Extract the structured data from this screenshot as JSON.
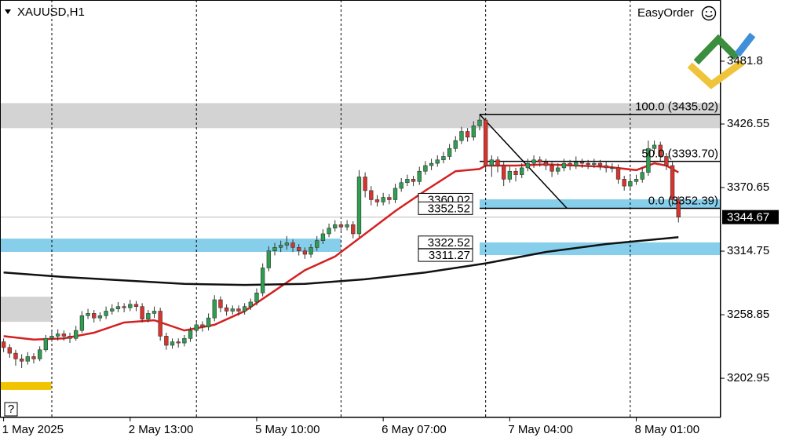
{
  "chart_data": {
    "type": "candlestick",
    "title": "XAUUSD,H1",
    "plugin": "EasyOrder",
    "help": "?",
    "bull_color": "#2e9e4f",
    "bear_color": "#d9342b",
    "xlim": [
      -0.6,
      119
    ],
    "ylim": [
      3168.5,
      3535.6
    ],
    "yticks": [
      3481.8,
      3426.55,
      3370.65,
      3314.75,
      3258.85,
      3202.95
    ],
    "xlabels": [
      {
        "value": 0,
        "label": "1 May 2025"
      },
      {
        "value": 21,
        "label": "2 May 13:00"
      },
      {
        "value": 42,
        "label": "5 May 10:00"
      },
      {
        "value": 63,
        "label": "6 May 07:00"
      },
      {
        "value": 84,
        "label": "7 May 04:00"
      },
      {
        "value": 105,
        "label": "8 May 01:00"
      }
    ],
    "separators": [
      8,
      32,
      56,
      80,
      104
    ],
    "ohlc": [
      [
        3235,
        3238,
        3226,
        3230
      ],
      [
        3230,
        3233,
        3221,
        3225
      ],
      [
        3225,
        3228,
        3214,
        3220
      ],
      [
        3220,
        3224,
        3212,
        3218
      ],
      [
        3218,
        3226,
        3215,
        3222
      ],
      [
        3222,
        3225,
        3216,
        3220
      ],
      [
        3220,
        3231,
        3218,
        3228
      ],
      [
        3228,
        3241,
        3226,
        3238
      ],
      [
        3238,
        3244,
        3235,
        3240
      ],
      [
        3240,
        3246,
        3236,
        3242
      ],
      [
        3242,
        3245,
        3236,
        3240
      ],
      [
        3240,
        3243,
        3234,
        3238
      ],
      [
        3238,
        3249,
        3236,
        3245
      ],
      [
        3245,
        3262,
        3243,
        3258
      ],
      [
        3258,
        3264,
        3255,
        3260
      ],
      [
        3260,
        3263,
        3252,
        3256
      ],
      [
        3256,
        3261,
        3253,
        3258
      ],
      [
        3258,
        3266,
        3255,
        3262
      ],
      [
        3262,
        3268,
        3259,
        3264
      ],
      [
        3264,
        3270,
        3261,
        3266
      ],
      [
        3266,
        3269,
        3261,
        3265
      ],
      [
        3265,
        3272,
        3262,
        3268
      ],
      [
        3268,
        3271,
        3262,
        3266
      ],
      [
        3266,
        3269,
        3252,
        3255
      ],
      [
        3255,
        3263,
        3252,
        3260
      ],
      [
        3260,
        3266,
        3256,
        3262
      ],
      [
        3262,
        3265,
        3236,
        3240
      ],
      [
        3240,
        3243,
        3228,
        3232
      ],
      [
        3232,
        3238,
        3229,
        3235
      ],
      [
        3235,
        3238,
        3230,
        3234
      ],
      [
        3234,
        3241,
        3231,
        3238
      ],
      [
        3238,
        3248,
        3235,
        3245
      ],
      [
        3245,
        3253,
        3242,
        3250
      ],
      [
        3250,
        3253,
        3244,
        3248
      ],
      [
        3248,
        3260,
        3245,
        3256
      ],
      [
        3256,
        3276,
        3253,
        3272
      ],
      [
        3272,
        3275,
        3261,
        3265
      ],
      [
        3265,
        3268,
        3258,
        3262
      ],
      [
        3262,
        3267,
        3259,
        3264
      ],
      [
        3264,
        3267,
        3258,
        3262
      ],
      [
        3262,
        3269,
        3259,
        3266
      ],
      [
        3266,
        3273,
        3263,
        3270
      ],
      [
        3270,
        3282,
        3267,
        3278
      ],
      [
        3278,
        3304,
        3275,
        3300
      ],
      [
        3300,
        3319,
        3297,
        3315
      ],
      [
        3315,
        3322,
        3311,
        3318
      ],
      [
        3318,
        3324,
        3314,
        3320
      ],
      [
        3320,
        3328,
        3316,
        3322
      ],
      [
        3322,
        3325,
        3314,
        3318
      ],
      [
        3318,
        3321,
        3311,
        3315
      ],
      [
        3315,
        3318,
        3308,
        3312
      ],
      [
        3312,
        3321,
        3309,
        3318
      ],
      [
        3318,
        3328,
        3315,
        3324
      ],
      [
        3324,
        3334,
        3321,
        3330
      ],
      [
        3330,
        3339,
        3327,
        3335
      ],
      [
        3335,
        3342,
        3332,
        3338
      ],
      [
        3338,
        3341,
        3332,
        3336
      ],
      [
        3336,
        3342,
        3333,
        3338
      ],
      [
        3338,
        3341,
        3326,
        3330
      ],
      [
        3330,
        3386,
        3327,
        3380
      ],
      [
        3380,
        3384,
        3362,
        3368
      ],
      [
        3368,
        3372,
        3355,
        3360
      ],
      [
        3360,
        3364,
        3354,
        3358
      ],
      [
        3358,
        3366,
        3355,
        3362
      ],
      [
        3362,
        3365,
        3356,
        3360
      ],
      [
        3360,
        3374,
        3357,
        3370
      ],
      [
        3370,
        3379,
        3367,
        3375
      ],
      [
        3375,
        3382,
        3372,
        3378
      ],
      [
        3378,
        3381,
        3372,
        3376
      ],
      [
        3376,
        3389,
        3373,
        3385
      ],
      [
        3385,
        3394,
        3382,
        3390
      ],
      [
        3390,
        3396,
        3386,
        3392
      ],
      [
        3392,
        3399,
        3389,
        3395
      ],
      [
        3395,
        3402,
        3392,
        3398
      ],
      [
        3398,
        3409,
        3395,
        3405
      ],
      [
        3405,
        3416,
        3402,
        3412
      ],
      [
        3412,
        3424,
        3409,
        3420
      ],
      [
        3420,
        3423,
        3411,
        3415
      ],
      [
        3415,
        3429,
        3412,
        3425
      ],
      [
        3425,
        3435,
        3421,
        3430
      ],
      [
        3430,
        3432,
        3386,
        3390
      ],
      [
        3390,
        3399,
        3380,
        3395
      ],
      [
        3395,
        3398,
        3384,
        3390
      ],
      [
        3390,
        3393,
        3372,
        3378
      ],
      [
        3378,
        3389,
        3375,
        3385
      ],
      [
        3385,
        3388,
        3376,
        3382
      ],
      [
        3382,
        3392,
        3379,
        3388
      ],
      [
        3388,
        3396,
        3385,
        3392
      ],
      [
        3392,
        3399,
        3388,
        3395
      ],
      [
        3395,
        3398,
        3389,
        3393
      ],
      [
        3393,
        3396,
        3386,
        3390
      ],
      [
        3390,
        3393,
        3380,
        3385
      ],
      [
        3385,
        3392,
        3382,
        3388
      ],
      [
        3388,
        3396,
        3385,
        3392
      ],
      [
        3392,
        3395,
        3386,
        3390
      ],
      [
        3390,
        3398,
        3387,
        3393
      ],
      [
        3393,
        3396,
        3388,
        3392
      ],
      [
        3392,
        3395,
        3387,
        3391
      ],
      [
        3391,
        3396,
        3388,
        3392
      ],
      [
        3392,
        3395,
        3386,
        3390
      ],
      [
        3390,
        3393,
        3384,
        3388
      ],
      [
        3388,
        3392,
        3384,
        3388
      ],
      [
        3388,
        3391,
        3374,
        3378
      ],
      [
        3378,
        3381,
        3368,
        3372
      ],
      [
        3372,
        3380,
        3369,
        3376
      ],
      [
        3376,
        3382,
        3373,
        3378
      ],
      [
        3378,
        3388,
        3375,
        3384
      ],
      [
        3384,
        3412,
        3381,
        3405
      ],
      [
        3405,
        3412,
        3400,
        3408
      ],
      [
        3408,
        3411,
        3394,
        3398
      ],
      [
        3398,
        3401,
        3386,
        3390
      ],
      [
        3390,
        3393,
        3355,
        3360
      ],
      [
        3360,
        3363,
        3340,
        3344.67
      ]
    ],
    "lines": [
      {
        "color": "#d42020",
        "x": [
          0,
          5,
          10,
          15,
          20,
          25,
          30,
          35,
          40,
          45,
          50,
          55,
          60,
          65,
          70,
          75,
          79,
          80,
          85,
          90,
          95,
          100,
          105,
          108,
          110,
          112
        ],
        "values": [
          3240,
          3237,
          3238,
          3243,
          3252,
          3254,
          3245,
          3250,
          3262,
          3280,
          3298,
          3310,
          3330,
          3350,
          3368,
          3385,
          3387,
          3390,
          3390,
          3391,
          3390,
          3389,
          3386,
          3392,
          3390,
          3384
        ]
      },
      {
        "color": "#111111",
        "x": [
          0,
          10,
          20,
          30,
          40,
          50,
          60,
          70,
          80,
          90,
          100,
          110,
          112
        ],
        "values": [
          3296,
          3292,
          3289,
          3286,
          3285,
          3286,
          3290,
          3296,
          3304,
          3314,
          3321,
          3326,
          3327
        ]
      }
    ],
    "zones": [
      {
        "color": "#d3d3d3",
        "x": [
          -0.6,
          119
        ],
        "y": [
          3422.9,
          3444.9
        ]
      },
      {
        "color": "#d3d3d3",
        "x": [
          -0.6,
          7.9
        ],
        "y": [
          3252.6,
          3274.7
        ]
      },
      {
        "color": "#f2c400",
        "x": [
          -0.6,
          7.9
        ],
        "y": [
          3192.7,
          3199.6
        ]
      },
      {
        "color": "#87ceeb",
        "x": [
          -0.6,
          56
        ],
        "y": [
          3314.1,
          3325.8
        ]
      },
      {
        "color": "#87ceeb",
        "x": [
          79,
          119
        ],
        "y": [
          3352.7,
          3360.3
        ]
      },
      {
        "color": "#87ceeb",
        "x": [
          79,
          119
        ],
        "y": [
          3311.3,
          3322.4
        ]
      }
    ],
    "fib": {
      "x": [
        79,
        119
      ],
      "diagonal": [
        [
          79,
          3435.02
        ],
        [
          93.5,
          3352.39
        ]
      ],
      "levels": [
        {
          "value": 3435.02,
          "label": "100.0 (3435.02)"
        },
        {
          "value": 3393.7,
          "label": "50.0 (3393.70)"
        },
        {
          "value": 3352.39,
          "label": "0.0 (3352.39)"
        }
      ]
    },
    "price_labels": [
      3360.02,
      3352.52,
      3322.52,
      3311.27
    ],
    "current_price": 3344.67
  }
}
